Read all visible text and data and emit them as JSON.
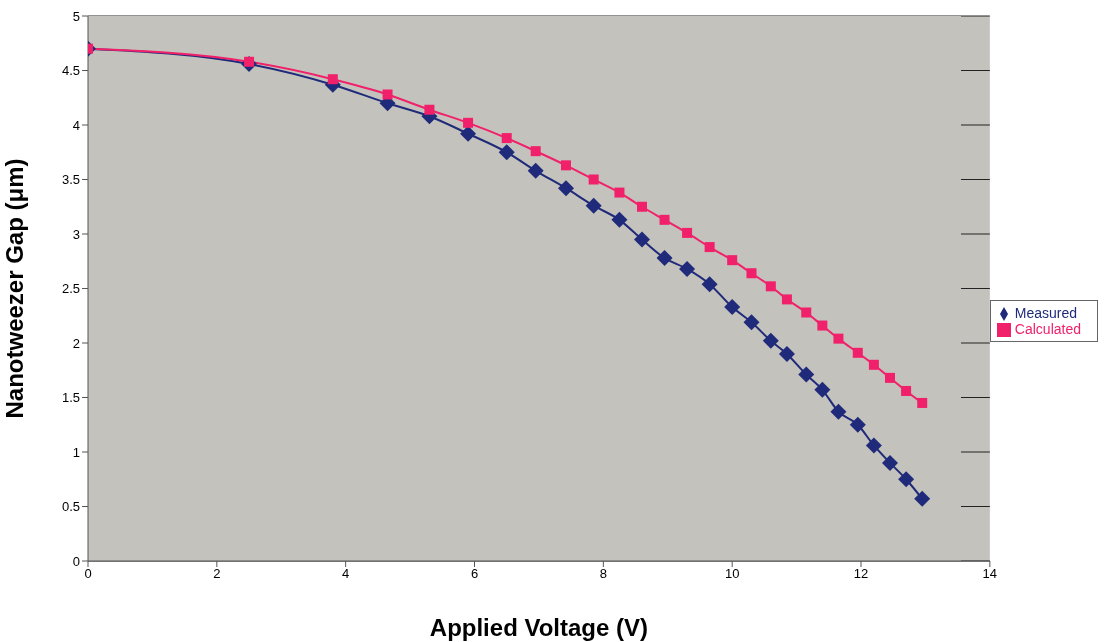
{
  "chart_data": {
    "type": "line",
    "xlabel": "Applied Voltage (V)",
    "ylabel": "Nanotweezer Gap (μm)",
    "xlim": [
      0,
      14
    ],
    "xticks": [
      0,
      2,
      4,
      6,
      8,
      10,
      12,
      14
    ],
    "ylim": [
      0,
      5
    ],
    "yticks": [
      0,
      0.5,
      1,
      1.5,
      2,
      2.5,
      3,
      3.5,
      4,
      4.5,
      5
    ],
    "grid": "y",
    "legend": "right",
    "x": [
      0,
      2.5,
      3.8,
      4.65,
      5.3,
      5.9,
      6.5,
      6.95,
      7.42,
      7.85,
      8.25,
      8.6,
      8.95,
      9.3,
      9.65,
      10,
      10.3,
      10.6,
      10.85,
      11.15,
      11.4,
      11.65,
      11.95,
      12.2,
      12.45,
      12.7,
      12.95
    ],
    "series": [
      {
        "name": "Measured",
        "color": "#1f2a7a",
        "marker": "diamond",
        "values": [
          4.7,
          4.56,
          4.37,
          4.2,
          4.08,
          3.92,
          3.75,
          3.58,
          3.42,
          3.26,
          3.13,
          2.95,
          2.78,
          2.68,
          2.54,
          2.33,
          2.19,
          2.02,
          1.9,
          1.71,
          1.57,
          1.37,
          1.25,
          1.06,
          0.9,
          0.75,
          0.57
        ]
      },
      {
        "name": "Calculated",
        "color": "#f0216a",
        "marker": "square",
        "values": [
          4.7,
          4.58,
          4.42,
          4.28,
          4.14,
          4.02,
          3.88,
          3.76,
          3.63,
          3.5,
          3.38,
          3.25,
          3.13,
          3.01,
          2.88,
          2.76,
          2.64,
          2.52,
          2.4,
          2.28,
          2.16,
          2.04,
          1.91,
          1.8,
          1.68,
          1.56,
          1.45
        ]
      }
    ]
  }
}
